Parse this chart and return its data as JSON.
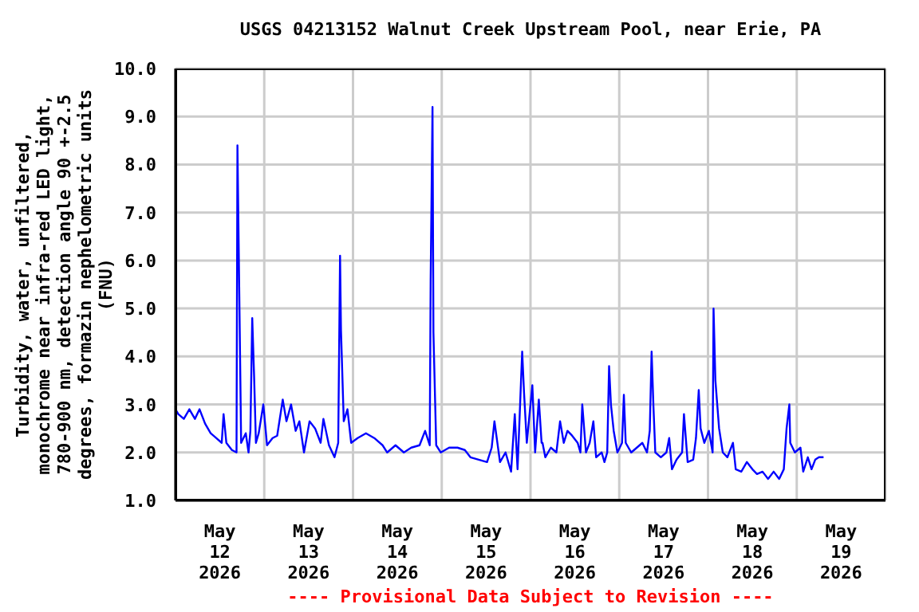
{
  "chart_data": {
    "type": "line",
    "title": "USGS 04213152 Walnut Creek Upstream Pool, near Erie, PA",
    "ylabel": "Turbidity, water, unfiltered,\nmonochrome near infra-red LED light,\n780-900 nm, detection angle 90 +-2.5\ndegrees, formazin nephelometric units\n(FNU)",
    "annotations": [
      "---- Provisional Data Subject to Revision ----"
    ],
    "x": [
      "2026-05-12T00:00",
      "2026-05-12T00:45",
      "2026-05-12T02:15",
      "2026-05-12T03:45",
      "2026-05-12T05:15",
      "2026-05-12T06:30",
      "2026-05-12T08:00",
      "2026-05-12T09:30",
      "2026-05-12T11:00",
      "2026-05-12T12:30",
      "2026-05-12T13:00",
      "2026-05-12T13:45",
      "2026-05-12T15:15",
      "2026-05-12T16:30",
      "2026-05-12T16:45",
      "2026-05-12T17:15",
      "2026-05-12T17:45",
      "2026-05-12T19:00",
      "2026-05-12T19:45",
      "2026-05-12T20:15",
      "2026-05-12T20:45",
      "2026-05-12T21:15",
      "2026-05-12T21:45",
      "2026-05-12T22:30",
      "2026-05-12T23:45",
      "2026-05-13T00:45",
      "2026-05-13T02:15",
      "2026-05-13T03:30",
      "2026-05-13T05:00",
      "2026-05-13T06:00",
      "2026-05-13T07:15",
      "2026-05-13T08:30",
      "2026-05-13T09:30",
      "2026-05-13T10:45",
      "2026-05-13T12:15",
      "2026-05-13T13:45",
      "2026-05-13T15:15",
      "2026-05-13T16:00",
      "2026-05-13T17:30",
      "2026-05-13T19:00",
      "2026-05-13T20:00",
      "2026-05-13T20:30",
      "2026-05-13T20:45",
      "2026-05-13T21:30",
      "2026-05-13T22:30",
      "2026-05-13T23:30",
      "2026-05-14T01:15",
      "2026-05-14T03:30",
      "2026-05-14T05:45",
      "2026-05-14T08:00",
      "2026-05-14T09:15",
      "2026-05-14T11:30",
      "2026-05-14T13:45",
      "2026-05-14T15:45",
      "2026-05-14T18:00",
      "2026-05-14T19:30",
      "2026-05-14T20:45",
      "2026-05-14T21:00",
      "2026-05-14T21:30",
      "2026-05-14T21:45",
      "2026-05-14T22:30",
      "2026-05-14T23:45",
      "2026-05-15T02:00",
      "2026-05-15T04:15",
      "2026-05-15T06:15",
      "2026-05-15T07:45",
      "2026-05-15T10:00",
      "2026-05-15T12:15",
      "2026-05-15T13:30",
      "2026-05-15T14:15",
      "2026-05-15T15:45",
      "2026-05-15T17:15",
      "2026-05-15T18:45",
      "2026-05-15T19:45",
      "2026-05-15T20:30",
      "2026-05-15T21:45",
      "2026-05-15T22:15",
      "2026-05-15T23:00",
      "2026-05-16T00:30",
      "2026-05-16T01:15",
      "2026-05-16T02:15",
      "2026-05-16T03:00",
      "2026-05-16T03:15",
      "2026-05-16T04:00",
      "2026-05-16T05:30",
      "2026-05-16T07:00",
      "2026-05-16T08:00",
      "2026-05-16T09:00",
      "2026-05-16T10:00",
      "2026-05-16T11:15",
      "2026-05-16T12:45",
      "2026-05-16T13:30",
      "2026-05-16T14:00",
      "2026-05-16T15:00",
      "2026-05-16T16:00",
      "2026-05-16T17:00",
      "2026-05-16T17:45",
      "2026-05-16T19:15",
      "2026-05-16T20:00",
      "2026-05-16T20:45",
      "2026-05-16T21:15",
      "2026-05-16T21:45",
      "2026-05-16T22:30",
      "2026-05-16T23:30",
      "2026-05-17T00:45",
      "2026-05-17T01:15",
      "2026-05-17T01:45",
      "2026-05-17T03:15",
      "2026-05-17T04:45",
      "2026-05-17T06:15",
      "2026-05-17T07:30",
      "2026-05-17T08:15",
      "2026-05-17T08:45",
      "2026-05-17T09:15",
      "2026-05-17T09:45",
      "2026-05-17T11:15",
      "2026-05-17T12:45",
      "2026-05-17T13:30",
      "2026-05-17T14:15",
      "2026-05-17T15:30",
      "2026-05-17T17:00",
      "2026-05-17T17:30",
      "2026-05-17T18:30",
      "2026-05-17T20:00",
      "2026-05-17T20:45",
      "2026-05-17T21:30",
      "2026-05-17T22:00",
      "2026-05-17T23:00",
      "2026-05-18T00:15",
      "2026-05-18T01:15",
      "2026-05-18T01:30",
      "2026-05-18T02:00",
      "2026-05-18T03:00",
      "2026-05-18T04:00",
      "2026-05-18T05:15",
      "2026-05-18T06:45",
      "2026-05-18T07:30",
      "2026-05-18T09:00",
      "2026-05-18T10:30",
      "2026-05-18T12:00",
      "2026-05-18T13:15",
      "2026-05-18T14:45",
      "2026-05-18T16:15",
      "2026-05-18T17:45",
      "2026-05-18T19:15",
      "2026-05-18T20:30",
      "2026-05-18T21:15",
      "2026-05-18T22:00",
      "2026-05-18T22:15",
      "2026-05-18T23:30",
      "2026-05-19T01:00",
      "2026-05-19T01:45",
      "2026-05-19T03:00",
      "2026-05-19T04:00",
      "2026-05-19T05:00",
      "2026-05-19T06:00",
      "2026-05-19T07:15"
    ],
    "series": [
      {
        "color": "#0000ff",
        "values": [
          2.9,
          2.8,
          2.7,
          2.9,
          2.7,
          2.9,
          2.6,
          2.4,
          2.3,
          2.2,
          2.8,
          2.2,
          2.05,
          2.0,
          8.4,
          5.3,
          2.2,
          2.4,
          2.0,
          2.45,
          4.8,
          3.6,
          2.2,
          2.4,
          3.0,
          2.15,
          2.3,
          2.35,
          3.1,
          2.65,
          3.0,
          2.45,
          2.65,
          2.0,
          2.65,
          2.5,
          2.2,
          2.7,
          2.15,
          1.9,
          2.2,
          6.1,
          4.55,
          2.65,
          2.9,
          2.2,
          2.3,
          2.4,
          2.3,
          2.15,
          2.0,
          2.15,
          2.0,
          2.1,
          2.15,
          2.45,
          2.15,
          5.6,
          9.2,
          4.5,
          2.15,
          2.0,
          2.1,
          2.1,
          2.05,
          1.9,
          1.85,
          1.8,
          2.1,
          2.65,
          1.8,
          2.0,
          1.6,
          2.8,
          1.65,
          4.1,
          3.25,
          2.2,
          3.4,
          2.0,
          3.1,
          2.2,
          2.2,
          1.9,
          2.1,
          2.0,
          2.65,
          2.2,
          2.45,
          2.35,
          2.2,
          2.0,
          3.0,
          2.0,
          2.2,
          2.65,
          1.9,
          2.0,
          1.8,
          2.0,
          3.8,
          3.0,
          2.45,
          2.0,
          2.2,
          3.2,
          2.2,
          2.0,
          2.1,
          2.2,
          2.0,
          2.45,
          4.1,
          2.95,
          2.0,
          1.9,
          2.0,
          2.3,
          1.65,
          1.85,
          2.0,
          2.8,
          1.8,
          1.85,
          2.3,
          3.3,
          2.5,
          2.2,
          2.45,
          2.0,
          5.0,
          3.5,
          2.5,
          2.0,
          1.9,
          2.2,
          1.65,
          1.6,
          1.8,
          1.65,
          1.55,
          1.6,
          1.45,
          1.6,
          1.45,
          1.65,
          2.5,
          3.0,
          2.2,
          2.0,
          2.1,
          1.6,
          1.9,
          1.65,
          1.85,
          1.9,
          1.9
        ]
      }
    ],
    "xlim": [
      "2026-05-12T00:00",
      "2026-05-20T00:00"
    ],
    "xticks": [
      {
        "value": "2026-05-12T00:00",
        "label": null
      },
      {
        "value": "2026-05-12T12:00",
        "label": "May 12 2026"
      },
      {
        "value": "2026-05-13T00:00",
        "label": null
      },
      {
        "value": "2026-05-13T12:00",
        "label": "May 13 2026"
      },
      {
        "value": "2026-05-14T00:00",
        "label": null
      },
      {
        "value": "2026-05-14T12:00",
        "label": "May 14 2026"
      },
      {
        "value": "2026-05-15T00:00",
        "label": null
      },
      {
        "value": "2026-05-15T12:00",
        "label": "May 15 2026"
      },
      {
        "value": "2026-05-16T00:00",
        "label": null
      },
      {
        "value": "2026-05-16T12:00",
        "label": "May 16 2026"
      },
      {
        "value": "2026-05-17T00:00",
        "label": null
      },
      {
        "value": "2026-05-17T12:00",
        "label": "May 17 2026"
      },
      {
        "value": "2026-05-18T00:00",
        "label": null
      },
      {
        "value": "2026-05-18T12:00",
        "label": "May 18 2026"
      },
      {
        "value": "2026-05-19T00:00",
        "label": null
      },
      {
        "value": "2026-05-19T12:00",
        "label": "May 19 2026"
      },
      {
        "value": "2026-05-20T00:00",
        "label": null
      }
    ],
    "ylim": [
      1,
      10
    ],
    "yticks": [
      {
        "value": 1,
        "label": "1.0"
      },
      {
        "value": 2,
        "label": "2.0"
      },
      {
        "value": 3,
        "label": "3.0"
      },
      {
        "value": 4,
        "label": "4.0"
      },
      {
        "value": 5,
        "label": "5.0"
      },
      {
        "value": 6,
        "label": "6.0"
      },
      {
        "value": 7,
        "label": "7.0"
      },
      {
        "value": 8,
        "label": "8.0"
      },
      {
        "value": 9,
        "label": "9.0"
      },
      {
        "value": 10,
        "label": "10.0"
      }
    ],
    "grid": true
  }
}
